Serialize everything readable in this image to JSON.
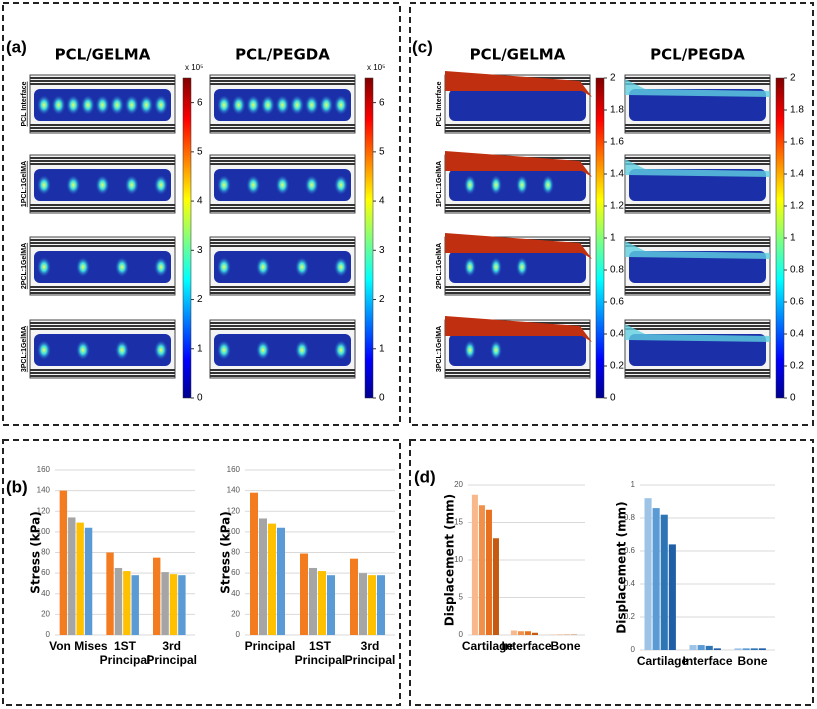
{
  "panels": {
    "a": "(a)",
    "b": "(b)",
    "c": "(c)",
    "d": "(d)"
  },
  "heatmaps": [
    {
      "columns": [
        "PCL/GELMA",
        "PCL/PEGDA"
      ],
      "rows": [
        "PCL Interface",
        "1PCL:1GelMA",
        "2PCL:1GelMA",
        "3PCL:1GelMA"
      ],
      "colorbar": {
        "multiplier": "x 10⁵",
        "lim": [
          0,
          6.5
        ],
        "ticks": [
          0,
          1,
          2,
          3,
          4,
          5,
          6
        ]
      }
    },
    {
      "columns": [
        "PCL/GELMA",
        "PCL/PEGDA"
      ],
      "rows": [
        "PCL Interface",
        "1PCL:1GelMA",
        "2PCL:1GelMA",
        "3PCL:1GelMA"
      ],
      "colorbar": {
        "lim": [
          0,
          2
        ],
        "ticks": [
          0,
          0.2,
          0.4,
          0.6,
          0.8,
          1,
          1.2,
          1.4,
          1.6,
          1.8,
          2
        ]
      }
    }
  ],
  "chart_data": [
    {
      "type": "bar",
      "y_label": "Stress (kPa)",
      "categories": [
        "Von Mises",
        "1ST\nPrincipal",
        "3rd\nPrincipal"
      ],
      "series": [
        {
          "color": "#f47c20",
          "values": [
            140,
            80,
            75
          ]
        },
        {
          "color": "#a5a5a5",
          "values": [
            114,
            65,
            61
          ]
        },
        {
          "color": "#ffc000",
          "values": [
            109,
            62,
            59
          ]
        },
        {
          "color": "#5b9bd5",
          "values": [
            104,
            58,
            58
          ]
        }
      ],
      "ylim": [
        0,
        160
      ],
      "yticks": [
        0,
        20,
        40,
        60,
        80,
        100,
        120,
        140,
        160
      ],
      "grid": true
    },
    {
      "type": "bar",
      "y_label": "Stress (kPa)",
      "categories": [
        "Principal",
        "1ST\nPrincipal",
        "3rd\nPrincipal"
      ],
      "series": [
        {
          "color": "#f47c20",
          "values": [
            138,
            79,
            74
          ]
        },
        {
          "color": "#a5a5a5",
          "values": [
            113,
            65,
            60
          ]
        },
        {
          "color": "#ffc000",
          "values": [
            108,
            62,
            58
          ]
        },
        {
          "color": "#5b9bd5",
          "values": [
            104,
            58,
            58
          ]
        }
      ],
      "ylim": [
        0,
        160
      ],
      "yticks": [
        0,
        20,
        40,
        60,
        80,
        100,
        120,
        140,
        160
      ],
      "grid": true
    },
    {
      "type": "bar",
      "y_label": "Displacement (mm)",
      "categories": [
        "Cartilage",
        "Interface",
        "Bone"
      ],
      "series": [
        {
          "color": "#f8b88b",
          "values": [
            18.7,
            0.6,
            0.05
          ]
        },
        {
          "color": "#f0904a",
          "values": [
            17.3,
            0.5,
            0.05
          ]
        },
        {
          "color": "#e8701e",
          "values": [
            16.7,
            0.5,
            0.05
          ]
        },
        {
          "color": "#c55a11",
          "values": [
            12.9,
            0.3,
            0.05
          ]
        }
      ],
      "ylim": [
        0,
        20
      ],
      "yticks": [
        0,
        5,
        10,
        15,
        20
      ],
      "grid": true
    },
    {
      "type": "bar",
      "y_label": "Displacement (mm)",
      "categories": [
        "Cartilage",
        "Interface",
        "Bone"
      ],
      "series": [
        {
          "color": "#9dc3e6",
          "values": [
            0.92,
            0.03,
            0.01
          ]
        },
        {
          "color": "#5b9bd5",
          "values": [
            0.86,
            0.03,
            0.01
          ]
        },
        {
          "color": "#2e75b6",
          "values": [
            0.82,
            0.025,
            0.01
          ]
        },
        {
          "color": "#1f5fa8",
          "values": [
            0.64,
            0.01,
            0.01
          ]
        }
      ],
      "ylim": [
        0,
        1
      ],
      "yticks": [
        0,
        0.2,
        0.4,
        0.6,
        0.8,
        1
      ],
      "grid": true
    }
  ]
}
